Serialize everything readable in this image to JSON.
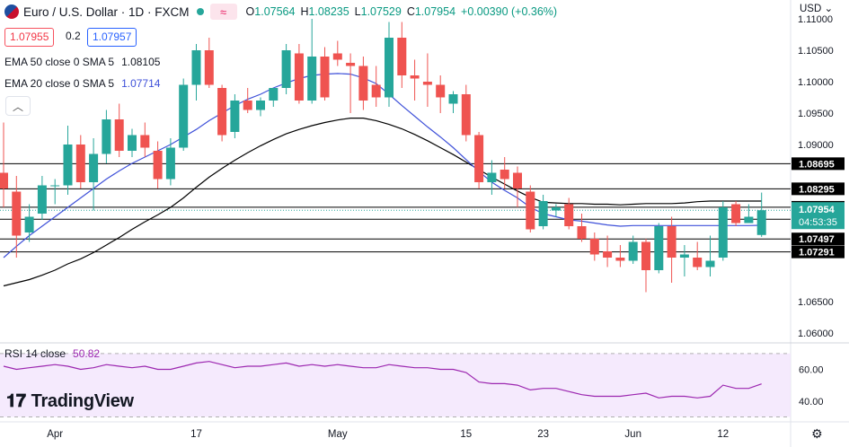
{
  "header": {
    "symbol": "Euro / U.S. Dollar · 1D · FXCM",
    "open_label": "O",
    "open": "1.07564",
    "high_label": "H",
    "high": "1.08235",
    "low_label": "L",
    "low": "1.07529",
    "close_label": "C",
    "close": "1.07954",
    "change": "+0.00390 (+0.36%)",
    "wave_icon": "≈"
  },
  "sell_price": "1.07955",
  "spread": "0.2",
  "buy_price": "1.07957",
  "legend": {
    "ema50_label": "EMA 50 close 0 SMA 5",
    "ema50_value": "1.08105",
    "ema20_label": "EMA 20 close 0 SMA 5",
    "ema20_value": "1.07714"
  },
  "rsi": {
    "label": "RSI 14 close",
    "value": "50.82"
  },
  "logo_text": "TradingView",
  "currency": "USD",
  "countdown": "04:53:35",
  "colors": {
    "up": "#26a69a",
    "down": "#ef5350",
    "ema50": "#000000",
    "ema20": "#3f51d9",
    "rsi": "#9c27b0"
  },
  "chart_data": {
    "type": "candlestick",
    "price_axis_ticks": [
      "1.11000",
      "1.10500",
      "1.10000",
      "1.09500",
      "1.09000",
      "1.06500",
      "1.06000"
    ],
    "price_range": [
      1.059,
      1.113
    ],
    "x_tick_labels": [
      {
        "label": "Apr",
        "index": 4
      },
      {
        "label": "17",
        "index": 15
      },
      {
        "label": "May",
        "index": 26
      },
      {
        "label": "15",
        "index": 36
      },
      {
        "label": "23",
        "index": 42
      },
      {
        "label": "Jun",
        "index": 49
      },
      {
        "label": "12",
        "index": 56
      }
    ],
    "horizontal_levels": [
      1.08695,
      1.08295,
      1.08001,
      1.0781,
      1.07497,
      1.07291
    ],
    "level_labels": [
      "1.08695",
      "1.08295",
      "1.08001",
      "1.07810",
      "1.07497",
      "1.07291"
    ],
    "current_price": 1.07954,
    "current_price_label": "1.07954",
    "candles": [
      [
        1.0855,
        1.0935,
        1.08,
        1.083
      ],
      [
        1.0825,
        1.085,
        1.072,
        1.0755
      ],
      [
        1.076,
        1.0805,
        1.0745,
        1.0785
      ],
      [
        1.079,
        1.085,
        1.078,
        1.0835
      ],
      [
        1.0835,
        1.0845,
        1.0805,
        1.0835
      ],
      [
        1.0835,
        1.093,
        1.082,
        1.09
      ],
      [
        1.09,
        1.0915,
        1.083,
        1.084
      ],
      [
        1.084,
        1.091,
        1.0795,
        1.0885
      ],
      [
        1.0885,
        1.0955,
        1.087,
        1.094
      ],
      [
        1.094,
        1.0965,
        1.088,
        1.089
      ],
      [
        1.089,
        1.0925,
        1.088,
        1.0915
      ],
      [
        1.0915,
        1.0935,
        1.088,
        1.0895
      ],
      [
        1.089,
        1.0905,
        1.083,
        1.0845
      ],
      [
        1.0845,
        1.091,
        1.0835,
        1.0895
      ],
      [
        1.0895,
        1.1005,
        1.089,
        1.0995
      ],
      [
        1.0995,
        1.106,
        1.097,
        1.105
      ],
      [
        1.105,
        1.107,
        1.099,
        1.0995
      ],
      [
        1.099,
        1.0995,
        1.0905,
        1.0915
      ],
      [
        1.092,
        1.098,
        1.091,
        1.097
      ],
      [
        1.097,
        1.099,
        1.095,
        1.0955
      ],
      [
        1.0955,
        1.0975,
        1.0945,
        1.097
      ],
      [
        1.097,
        1.099,
        1.096,
        1.099
      ],
      [
        1.099,
        1.106,
        1.098,
        1.105
      ],
      [
        1.1045,
        1.106,
        1.0965,
        1.097
      ],
      [
        1.097,
        1.11,
        1.0965,
        1.104
      ],
      [
        1.104,
        1.1055,
        1.097,
        1.0975
      ],
      [
        1.1045,
        1.1065,
        1.1025,
        1.1035
      ],
      [
        1.103,
        1.1045,
        1.095,
        1.1025
      ],
      [
        1.1025,
        1.104,
        1.0955,
        1.097
      ],
      [
        1.0995,
        1.1025,
        1.096,
        1.0975
      ],
      [
        1.0975,
        1.1095,
        1.096,
        1.107
      ],
      [
        1.107,
        1.1095,
        1.099,
        1.101
      ],
      [
        1.101,
        1.1035,
        1.097,
        1.1005
      ],
      [
        1.1,
        1.1045,
        1.096,
        1.0995
      ],
      [
        1.0995,
        1.101,
        1.095,
        1.0975
      ],
      [
        1.0965,
        1.0985,
        1.095,
        1.098
      ],
      [
        1.098,
        1.0995,
        1.0905,
        1.0915
      ],
      [
        1.0915,
        1.092,
        1.083,
        1.084
      ],
      [
        1.084,
        1.0875,
        1.082,
        1.0855
      ],
      [
        1.086,
        1.088,
        1.083,
        1.0845
      ],
      [
        1.0855,
        1.0865,
        1.08,
        1.083
      ],
      [
        1.0825,
        1.0835,
        1.076,
        1.0765
      ],
      [
        1.077,
        1.082,
        1.0765,
        1.081
      ],
      [
        1.0795,
        1.0805,
        1.0785,
        1.08
      ],
      [
        1.0805,
        1.0815,
        1.0765,
        1.077
      ],
      [
        1.077,
        1.079,
        1.0745,
        1.075
      ],
      [
        1.075,
        1.076,
        1.0715,
        1.0725
      ],
      [
        1.073,
        1.0755,
        1.0705,
        1.072
      ],
      [
        1.072,
        1.074,
        1.0705,
        1.0715
      ],
      [
        1.0715,
        1.0755,
        1.071,
        1.0745
      ],
      [
        1.0745,
        1.075,
        1.0665,
        1.07
      ],
      [
        1.07,
        1.0775,
        1.0695,
        1.077
      ],
      [
        1.077,
        1.0785,
        1.068,
        1.072
      ],
      [
        1.072,
        1.074,
        1.069,
        1.0725
      ],
      [
        1.072,
        1.0745,
        1.07,
        1.0705
      ],
      [
        1.0705,
        1.0755,
        1.069,
        1.0715
      ],
      [
        1.072,
        1.081,
        1.0715,
        1.08
      ],
      [
        1.0805,
        1.081,
        1.077,
        1.0775
      ],
      [
        1.0775,
        1.0805,
        1.0775,
        1.0785
      ],
      [
        1.0756,
        1.08235,
        1.0753,
        1.07954
      ]
    ],
    "ema50": [
      1.0675,
      1.068,
      1.0685,
      1.0692,
      1.07,
      1.071,
      1.0718,
      1.0728,
      1.074,
      1.0752,
      1.0765,
      1.0777,
      1.0788,
      1.08,
      1.0815,
      1.0832,
      1.0848,
      1.0862,
      1.0875,
      1.0887,
      1.0898,
      1.0908,
      1.0917,
      1.0924,
      1.093,
      1.0935,
      1.0939,
      1.0942,
      1.0942,
      1.0938,
      1.0932,
      1.0925,
      1.0916,
      1.0906,
      1.0895,
      1.0884,
      1.0872,
      1.086,
      1.0848,
      1.0837,
      1.0826,
      1.0816,
      1.0808,
      1.0807,
      1.0806,
      1.0806,
      1.0805,
      1.0805,
      1.0804,
      1.0805,
      1.0806,
      1.0806,
      1.0806,
      1.0807,
      1.0809,
      1.081,
      1.081,
      1.081,
      1.081,
      1.081
    ],
    "ema20": [
      1.072,
      1.0738,
      1.0755,
      1.077,
      1.0785,
      1.08,
      1.0815,
      1.083,
      1.0845,
      1.0858,
      1.087,
      1.088,
      1.089,
      1.09,
      1.0912,
      1.0924,
      1.0938,
      1.095,
      1.0962,
      1.0972,
      1.098,
      1.099,
      1.0998,
      1.1005,
      1.101,
      1.1012,
      1.1013,
      1.1012,
      1.1006,
      1.0997,
      1.098,
      1.0962,
      1.0945,
      1.0928,
      1.0912,
      1.0895,
      1.0876,
      1.0857,
      1.084,
      1.0827,
      1.0815,
      1.08,
      1.079,
      1.0785,
      1.078,
      1.0778,
      1.0775,
      1.0772,
      1.077,
      1.0771,
      1.0771,
      1.0771,
      1.0771,
      1.0771,
      1.0771,
      1.0771,
      1.0771,
      1.0771,
      1.0771,
      1.07714
    ],
    "rsi": {
      "ticks": [
        "60.00",
        "40.00"
      ],
      "range": [
        28,
        75
      ],
      "band": [
        30,
        70
      ],
      "values": [
        62,
        60,
        61,
        62,
        63,
        62,
        60,
        61,
        63,
        62,
        61,
        62,
        60,
        60,
        62,
        64,
        65,
        63,
        61,
        62,
        62,
        63,
        64,
        62,
        63,
        62,
        63,
        62,
        61,
        61,
        63,
        62,
        61,
        61,
        60,
        60,
        58,
        52,
        51,
        51,
        50,
        47,
        48,
        48,
        46,
        44,
        43,
        43,
        43,
        44,
        45,
        42,
        43,
        43,
        42,
        43,
        50,
        48,
        48,
        50.82
      ]
    }
  }
}
